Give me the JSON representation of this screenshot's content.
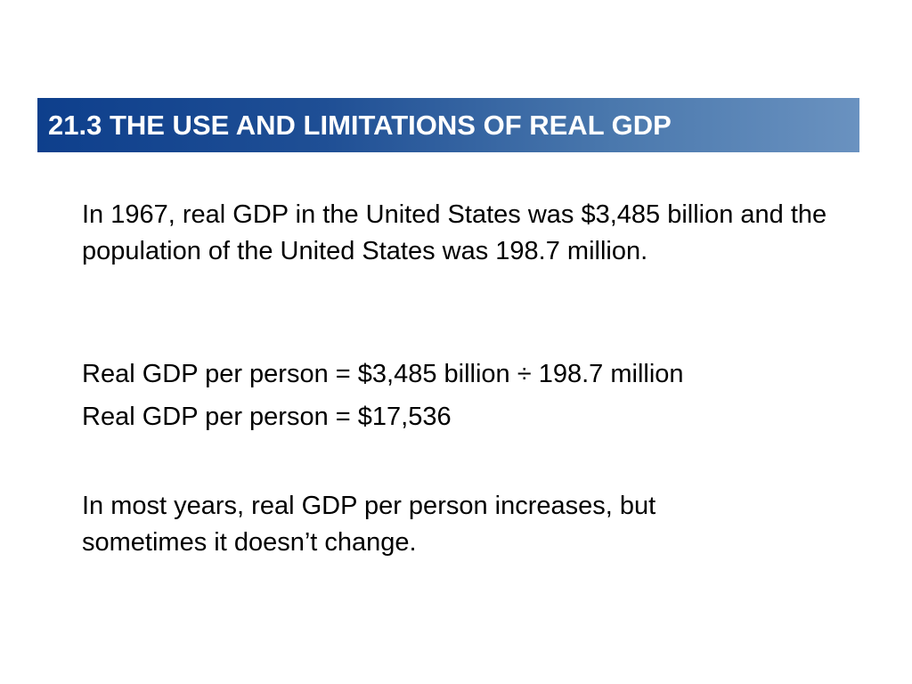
{
  "slide": {
    "title": "21.3 THE USE AND LIMITATIONS OF REAL GDP",
    "paragraphs": [
      "In 1967, real GDP in the United States was $3,485 billion and the population of the United States was 198.7 million.",
      "Real GDP per person = $3,485 billion ÷ 198.7 million",
      "Real GDP per person = $17,536",
      "In most years, real GDP per person increases, but sometimes it doesn’t change."
    ]
  },
  "colors": {
    "title_gradient_start": "#0e3f8c",
    "title_gradient_end": "#6a92c0",
    "title_text": "#ffffff",
    "body_text": "#000000",
    "background": "#ffffff"
  }
}
